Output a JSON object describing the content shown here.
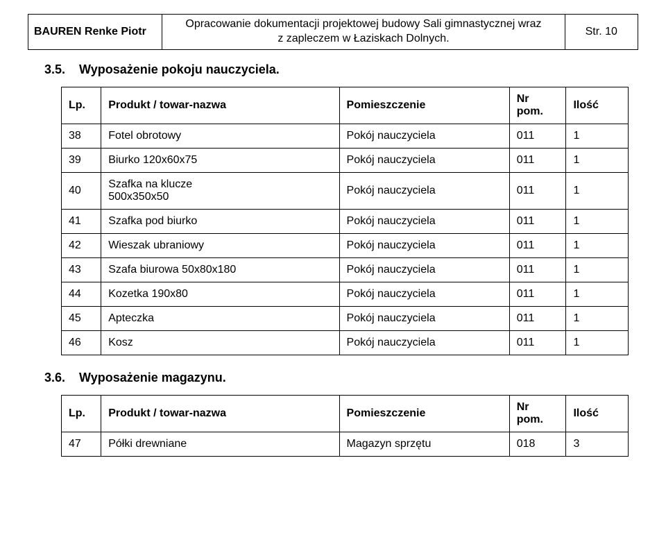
{
  "header": {
    "left": "BAUREN Renke Piotr",
    "center_line1": "Opracowanie dokumentacji projektowej budowy Sali gimnastycznej wraz",
    "center_line2": "z zapleczem w Łaziskach Dolnych.",
    "right": "Str. 10"
  },
  "section1": {
    "number": "3.5.",
    "title": "Wyposażenie pokoju nauczyciela."
  },
  "table1": {
    "headers": {
      "lp": "Lp.",
      "product": "Produkt / towar-nazwa",
      "room": "Pomieszczenie",
      "nr_line1": "Nr",
      "nr_line2": "pom.",
      "qty": "Ilość"
    },
    "rows": [
      {
        "lp": "38",
        "product": "Fotel obrotowy",
        "room": "Pokój nauczyciela",
        "nr": "011",
        "qty": "1"
      },
      {
        "lp": "39",
        "product": "Biurko 120x60x75",
        "room": "Pokój nauczyciela",
        "nr": "011",
        "qty": "1"
      },
      {
        "lp": "40",
        "product_line1": "Szafka na klucze",
        "product_line2": "500x350x50",
        "room": "Pokój nauczyciela",
        "nr": "011",
        "qty": "1"
      },
      {
        "lp": "41",
        "product": "Szafka pod biurko",
        "room": "Pokój nauczyciela",
        "nr": "011",
        "qty": "1"
      },
      {
        "lp": "42",
        "product": "Wieszak ubraniowy",
        "room": "Pokój nauczyciela",
        "nr": "011",
        "qty": "1"
      },
      {
        "lp": "43",
        "product": "Szafa biurowa 50x80x180",
        "room": "Pokój nauczyciela",
        "nr": "011",
        "qty": "1"
      },
      {
        "lp": "44",
        "product": "Kozetka 190x80",
        "room": "Pokój nauczyciela",
        "nr": "011",
        "qty": "1"
      },
      {
        "lp": "45",
        "product": "Apteczka",
        "room": "Pokój nauczyciela",
        "nr": "011",
        "qty": "1"
      },
      {
        "lp": "46",
        "product": "Kosz",
        "room": "Pokój nauczyciela",
        "nr": "011",
        "qty": "1"
      }
    ]
  },
  "section2": {
    "number": "3.6.",
    "title": "Wyposażenie magazynu."
  },
  "table2": {
    "headers": {
      "lp": "Lp.",
      "product": "Produkt / towar-nazwa",
      "room": "Pomieszczenie",
      "nr_line1": "Nr",
      "nr_line2": "pom.",
      "qty": "Ilość"
    },
    "rows": [
      {
        "lp": "47",
        "product": "Półki drewniane",
        "room": "Magazyn sprzętu",
        "nr": "018",
        "qty": "3"
      }
    ]
  }
}
